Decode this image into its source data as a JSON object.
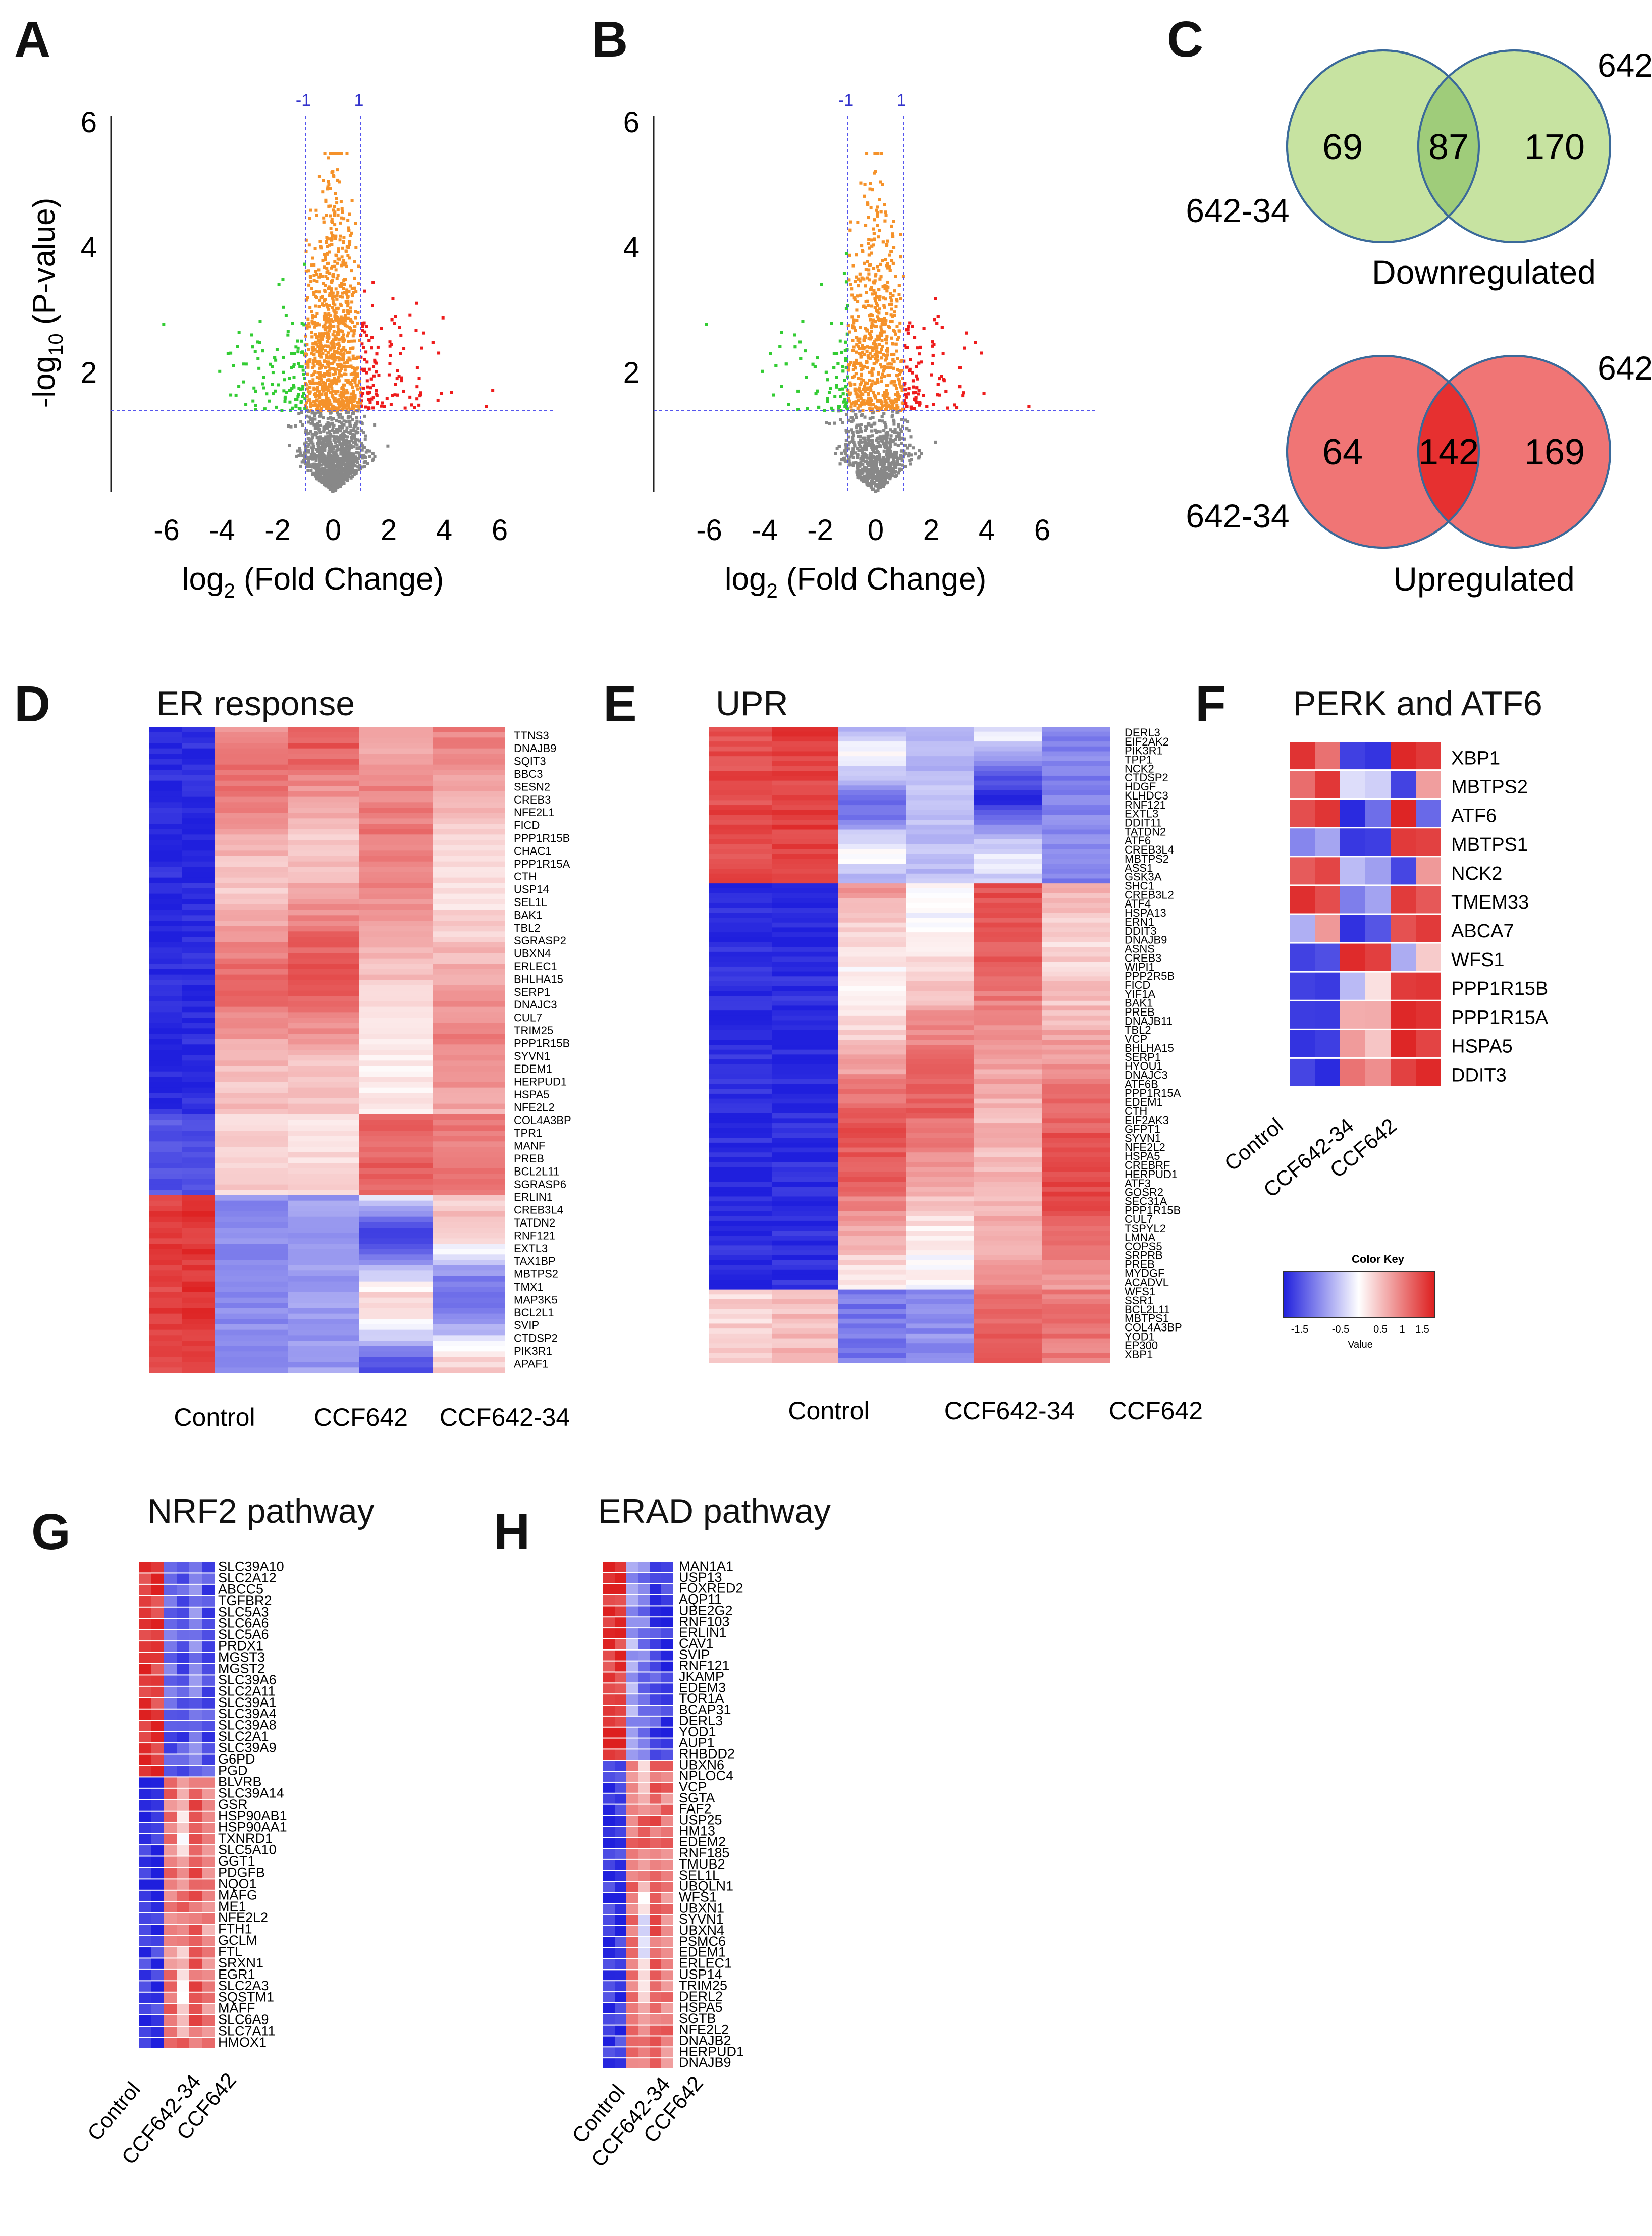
{
  "panels": {
    "A": {
      "letter": "A"
    },
    "B": {
      "letter": "B"
    },
    "C": {
      "letter": "C"
    },
    "D": {
      "letter": "D",
      "title": "ER response"
    },
    "E": {
      "letter": "E",
      "title": "UPR"
    },
    "F": {
      "letter": "F",
      "title": "PERK and ATF6"
    },
    "G": {
      "letter": "G",
      "title": "NRF2 pathway"
    },
    "H": {
      "letter": "H",
      "title": "ERAD pathway"
    }
  },
  "volcano": {
    "ylabel_prefix": "-log",
    "ylabel_sub": "10",
    "ylabel_suffix": " (P-value)",
    "xlabel_prefix": "log",
    "xlabel_sub": "2",
    "xlabel_suffix": " (Fold Change)",
    "xticks": [
      "-6",
      "-4",
      "-2",
      "0",
      "2",
      "4",
      "6"
    ],
    "yticks": [
      "2",
      "4",
      "6"
    ],
    "vline_labels": [
      "-1",
      "1"
    ]
  },
  "chart_data": [
    {
      "type": "scatter",
      "title": "",
      "xlabel": "log2 (Fold Change)",
      "ylabel": "-log10 (P-value)",
      "xlim": [
        -8,
        8
      ],
      "ylim": [
        0,
        6
      ],
      "thresholds": {
        "x": [
          -1,
          1
        ],
        "y": 1.3
      },
      "series": [
        {
          "name": "",
          "color": "#888888"
        },
        {
          "name": "",
          "color": "#f5922a"
        },
        {
          "name": "",
          "color": "#33cc33"
        },
        {
          "name": "",
          "color": "#ee1c1c"
        }
      ]
    },
    {
      "type": "scatter",
      "title": "",
      "xlabel": "log2 (Fold Change)",
      "ylabel": "-log10 (P-value)",
      "xlim": [
        -8,
        8
      ],
      "ylim": [
        0,
        6
      ],
      "thresholds": {
        "x": [
          -1,
          1
        ],
        "y": 1.3
      },
      "series": [
        {
          "name": "",
          "color": "#888888"
        },
        {
          "name": "",
          "color": "#f5922a"
        },
        {
          "name": "",
          "color": "#33cc33"
        },
        {
          "name": "",
          "color": "#ee1c1c"
        }
      ]
    }
  ],
  "venn": {
    "down": {
      "left": "69",
      "overlap": "87",
      "right": "170",
      "left_label": "642-34",
      "right_label": "642",
      "caption": "Downregulated"
    },
    "up": {
      "left": "64",
      "overlap": "142",
      "right": "169",
      "left_label": "642-34",
      "right_label": "642",
      "caption": "Upregulated"
    }
  },
  "heatmapD": {
    "genes": [
      "TTNS3",
      "DNAJB9",
      "SQIT3",
      "BBC3",
      "SESN2",
      "CREB3",
      "NFE2L1",
      "FICD",
      "PPP1R15B",
      "CHAC1",
      "PPP1R15A",
      "CTH",
      "USP14",
      "SEL1L",
      "BAK1",
      "TBL2",
      "SGRASP2",
      "UBXN4",
      "ERLEC1",
      "BHLHA15",
      "SERP1",
      "DNAJC3",
      "CUL7",
      "TRIM25",
      "PPP1R15B",
      "SYVN1",
      "EDEM1",
      "HERPUD1",
      "HSPA5",
      "NFE2L2",
      "COL4A3BP",
      "TPR1",
      "MANF",
      "PREB",
      "BCL2L11",
      "SGRASP6",
      "ERLIN1",
      "CREB3L4",
      "TATDN2",
      "RNF121",
      "EXTL3",
      "TAX1BP",
      "MBTPS2",
      "TMX1",
      "MAP3K5",
      "BCL2L1",
      "SVIP",
      "CTDSP2",
      "PIK3R1",
      "APAF1"
    ],
    "groups": [
      "Control",
      "CCF642",
      "CCF642-34"
    ]
  },
  "heatmapE": {
    "genes": [
      "DERL3",
      "EIF2AK2",
      "PIK3R1",
      "TPP1",
      "NCK2",
      "CTDSP2",
      "HDGF",
      "KLHDC3",
      "RNF121",
      "EXTL3",
      "DDIT11",
      "TATDN2",
      "ATF6",
      "CREB3L4",
      "MBTPS2",
      "ASS1",
      "GSK3A",
      "SHC1",
      "CREB3L2",
      "ATF4",
      "HSPA13",
      "ERN1",
      "DDIT3",
      "DNAJB9",
      "ASNS",
      "CREB3",
      "WIPI1",
      "PPP2R5B",
      "FICD",
      "YIF1A",
      "BAK1",
      "PREB",
      "DNAJB11",
      "TBL2",
      "VCP",
      "BHLHA15",
      "SERP1",
      "HYOU1",
      "DNAJC3",
      "ATF6B",
      "PPP1R15A",
      "EDEM1",
      "CTH",
      "EIF2AK3",
      "GFPT1",
      "SYVN1",
      "NFE2L2",
      "HSPA5",
      "CREBRF",
      "HERPUD1",
      "ATF3",
      "GOSR2",
      "SEC31A",
      "PPP1R15B",
      "CUL7",
      "TSPYL2",
      "LMNA",
      "COPS5",
      "SRPRB",
      "PREB",
      "MYDGF",
      "ACADVL",
      "WFS1",
      "SSR1",
      "BCL2L11",
      "MBTPS1",
      "COL4A3BP",
      "YOD1",
      "EP300",
      "XBP1"
    ],
    "groups": [
      "Control",
      "CCF642-34",
      "CCF642"
    ]
  },
  "heatmapF": {
    "genes": [
      "XBP1",
      "MBTPS2",
      "ATF6",
      "MBTPS1",
      "NCK2",
      "TMEM33",
      "ABCA7",
      "WFS1",
      "PPP1R15B",
      "PPP1R15A",
      "HSPA5",
      "DDIT3"
    ],
    "groups": [
      "Control",
      "CCF642-34",
      "CCF642"
    ]
  },
  "colorkey": {
    "title": "Color Key",
    "ticks": [
      "-1.5",
      "-0.5",
      "0.5",
      "1",
      "1.5"
    ],
    "xlabel": "Value"
  },
  "heatmapG": {
    "genes": [
      "SLC39A10",
      "SLC2A12",
      "ABCC5",
      "TGFBR2",
      "SLC5A3",
      "SLC6A6",
      "SLC5A6",
      "PRDX1",
      "MGST3",
      "MGST2",
      "SLC39A6",
      "SLC2A11",
      "SLC39A1",
      "SLC39A4",
      "SLC39A8",
      "SLC2A1",
      "SLC39A9",
      "G6PD",
      "PGD",
      "BLVRB",
      "SLC39A14",
      "GSR",
      "HSP90AB1",
      "HSP90AA1",
      "TXNRD1",
      "SLC5A10",
      "GGT1",
      "PDGFB",
      "NQO1",
      "MAFG",
      "ME1",
      "NFE2L2",
      "FTH1",
      "GCLM",
      "FTL",
      "SRXN1",
      "EGR1",
      "SLC2A3",
      "SQSTM1",
      "MAFF",
      "SLC6A9",
      "SLC7A11",
      "HMOX1"
    ],
    "groups": [
      "Control",
      "CCF642-34",
      "CCF642"
    ]
  },
  "heatmapH": {
    "genes": [
      "MAN1A1",
      "USP13",
      "FOXRED2",
      "AQP11",
      "UBE2G2",
      "RNF103",
      "ERLIN1",
      "CAV1",
      "SVIP",
      "RNF121",
      "JKAMP",
      "EDEM3",
      "TOR1A",
      "BCAP31",
      "DERL3",
      "YOD1",
      "AUP1",
      "RHBDD2",
      "UBXN6",
      "NPLOC4",
      "VCP",
      "SGTA",
      "FAF2",
      "USP25",
      "HM13",
      "EDEM2",
      "RNF185",
      "TMUB2",
      "SEL1L",
      "UBQLN1",
      "WFS1",
      "UBXN1",
      "SYVN1",
      "UBXN4",
      "PSMC6",
      "EDEM1",
      "ERLEC1",
      "USP14",
      "TRIM25",
      "DERL2",
      "HSPA5",
      "SGTB",
      "NFE2L2",
      "DNAJB2",
      "HERPUD1",
      "DNAJB9"
    ],
    "groups": [
      "Control",
      "CCF642-34",
      "CCF642"
    ]
  },
  "colors": {
    "blue": "#1f1fdd",
    "red": "#dd1f1f",
    "grey": "#888888",
    "orange": "#f5922a",
    "green": "#33cc33",
    "scatter_red": "#ee1c1c",
    "venn_green": "#c7e3a1",
    "venn_green_overlap": "#9fcc7a",
    "venn_red": "#f07575",
    "venn_red_overlap": "#e63030",
    "threshold": "#5555ee"
  }
}
